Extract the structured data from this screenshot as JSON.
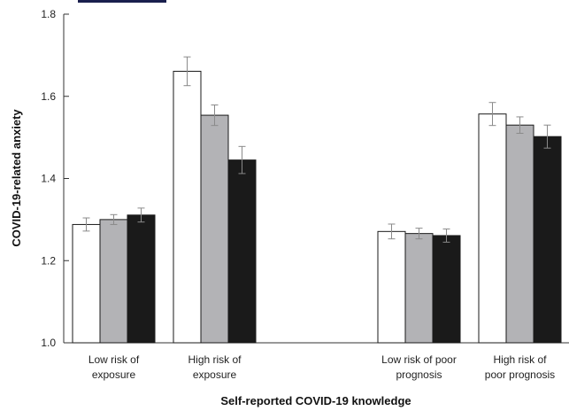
{
  "chart_data": {
    "type": "bar",
    "title": "",
    "xlabel": "Self-reported COVID-19 knowledge",
    "ylabel": "COVID-19-related anxiety",
    "ylim": [
      1.0,
      1.8
    ],
    "yticks": [
      "1.0",
      "1.2",
      "1.4",
      "1.6",
      "1.8"
    ],
    "grid": false,
    "categories": [
      [
        "Low risk of",
        "exposure"
      ],
      [
        "High risk of",
        "exposure"
      ],
      [
        "Low risk of poor",
        "prognosis"
      ],
      [
        "High risk of",
        "poor prognosis"
      ]
    ],
    "series": [
      {
        "color": "#ffffff",
        "values": [
          1.288,
          1.661,
          1.271,
          1.557
        ],
        "errors": [
          0.016,
          0.035,
          0.018,
          0.028
        ]
      },
      {
        "color": "#b3b3b6",
        "values": [
          1.3,
          1.554,
          1.266,
          1.53
        ],
        "errors": [
          0.012,
          0.025,
          0.013,
          0.02
        ]
      },
      {
        "color": "#1a1a1a",
        "values": [
          1.311,
          1.445,
          1.261,
          1.502
        ],
        "errors": [
          0.017,
          0.033,
          0.016,
          0.028
        ]
      }
    ]
  },
  "legend_box_color": "#1a1f4e"
}
